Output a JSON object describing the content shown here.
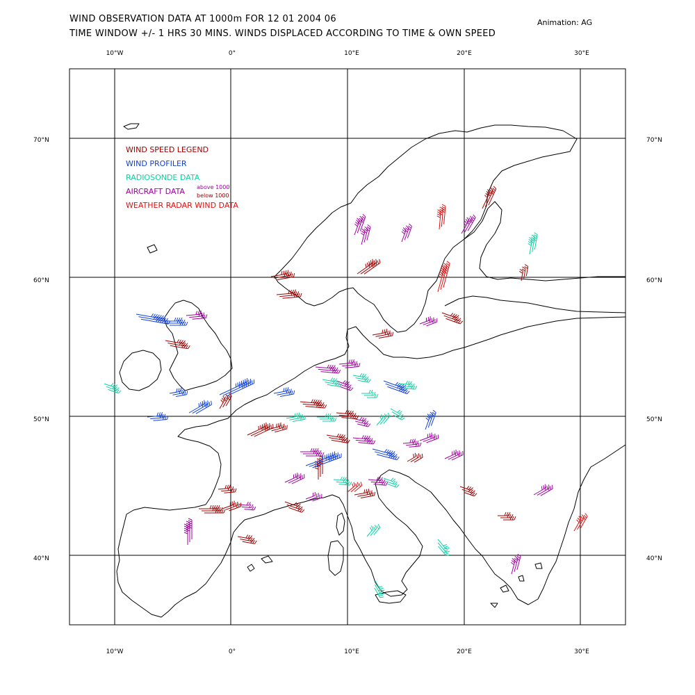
{
  "title_line1": "WIND OBSERVATION DATA AT 1000m FOR 12 01 2004 06",
  "title_line2": "TIME WINDOW +/- 1 HRS 30 MINS. WINDS DISPLACED ACCORDING TO TIME & OWN SPEED",
  "credit": "Animation: AG",
  "longitude_labels": [
    "10°W",
    "0°",
    "10°E",
    "20°E",
    "30°E"
  ],
  "latitude_labels": [
    "70°N",
    "60°N",
    "50°N",
    "40°N"
  ],
  "legend": {
    "title": "WIND SPEED LEGEND",
    "profiler": "WIND PROFILER",
    "radiosonde": "RADIOSONDE DATA",
    "aircraft": "AIRCRAFT DATA",
    "above": "above 1000",
    "below": "below 1000",
    "radar": "WEATHER RADAR WIND DATA"
  },
  "colors": {
    "legend_title": "#a00000",
    "profiler": "#1040e0",
    "radiosonde": "#10d0a0",
    "aircraft_above": "#a000a0",
    "aircraft_below": "#a00000",
    "radar": "#e01010"
  }
}
